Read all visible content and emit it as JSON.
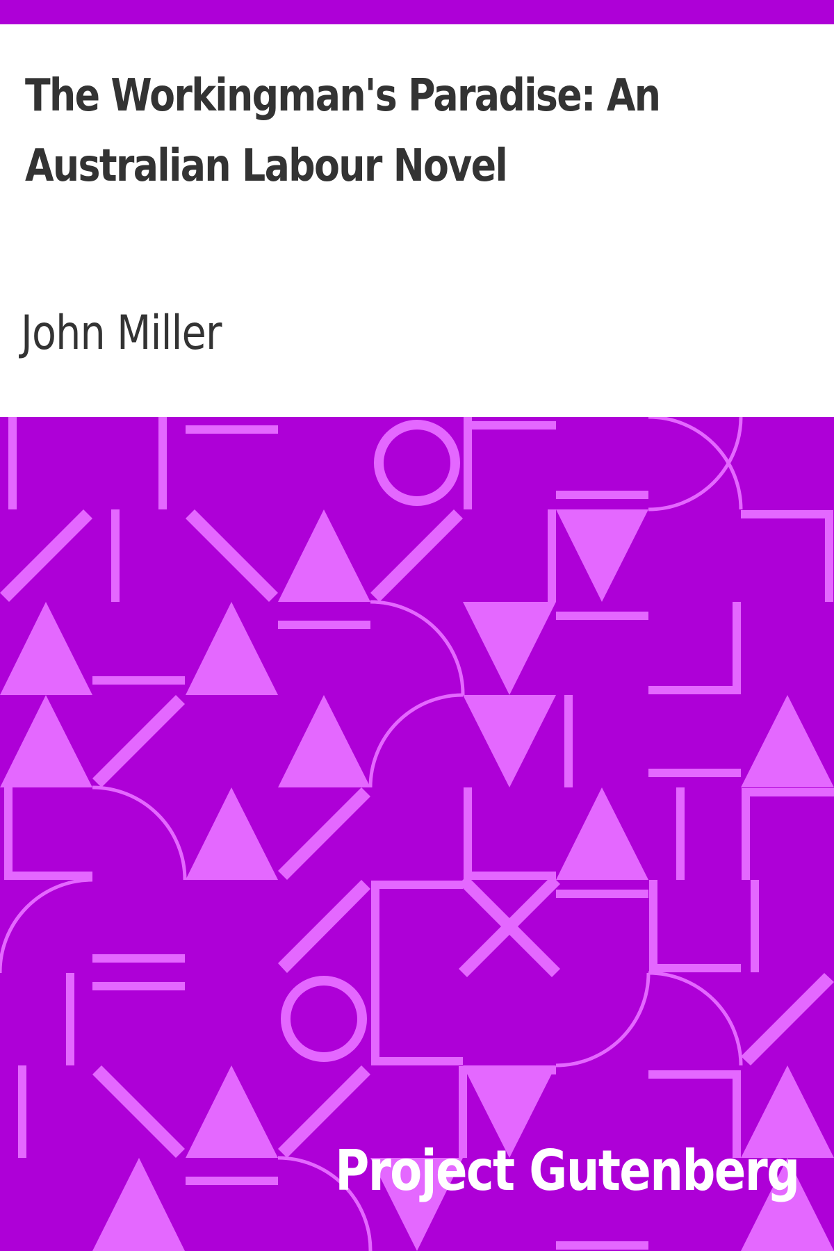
{
  "cover": {
    "title": "The Workingman's Paradise: An Australian Labour Novel",
    "author": "John Miller",
    "publisher": "Project Gutenberg"
  },
  "colors": {
    "accent": "#ae00d7",
    "pattern": "#e468ff",
    "text": "#333333",
    "publisher_text": "#ffffff"
  }
}
